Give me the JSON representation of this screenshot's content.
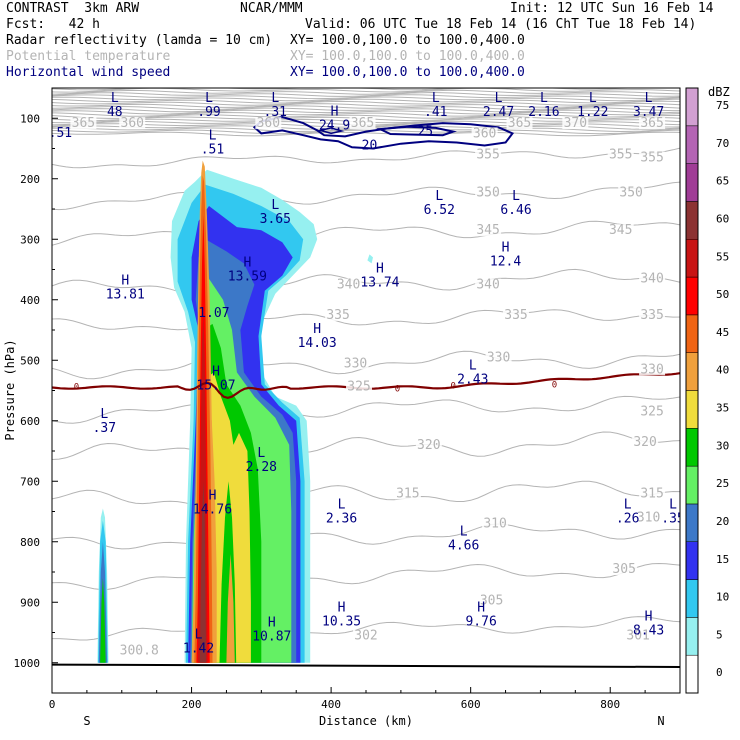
{
  "header": {
    "model": "CONTRAST  3km ARW",
    "org": "NCAR/MMM",
    "init": "Init: 12 UTC Sun 16 Feb 14",
    "fcst": "Fcst:   42 h",
    "valid": "Valid: 06 UTC Tue 18 Feb 14 (16 ChT Tue 18 Feb 14)",
    "fields": [
      {
        "name": "Radar reflectivity (lamda = 10 cm)",
        "xy": "XY= 100.0,100.0 to 100.0,400.0",
        "color": "#000000"
      },
      {
        "name": "Potential temperature",
        "xy": "XY= 100.0,100.0 to 100.0,400.0",
        "color": "#b4b4b4"
      },
      {
        "name": "Horizontal wind speed",
        "xy": "XY= 100.0,100.0 to 100.0,400.0",
        "color": "#000080"
      }
    ]
  },
  "chart_data": {
    "type": "heatmap",
    "title": "",
    "xlabel": "Distance (km)",
    "ylabel": "Pressure (hPa)",
    "xlim": [
      0,
      900
    ],
    "ylim": [
      1050,
      50
    ],
    "x_ticks": [
      "0",
      "200",
      "400",
      "600",
      "800"
    ],
    "y_ticks": [
      "100",
      "200",
      "300",
      "400",
      "500",
      "600",
      "700",
      "800",
      "900",
      "1000"
    ],
    "x_end_labels": {
      "left": "S",
      "right": "N"
    },
    "colorbar": {
      "unit": "dBZ",
      "levels": [
        "0",
        "5",
        "10",
        "15",
        "20",
        "25",
        "30",
        "35",
        "40",
        "45",
        "50",
        "55",
        "60",
        "65",
        "70",
        "75"
      ],
      "colors": [
        "#ffffff",
        "#96f0f0",
        "#32c8f0",
        "#3232f0",
        "#3c78c8",
        "#64f064",
        "#00c800",
        "#f0dc3c",
        "#f0a03c",
        "#f06414",
        "#ff0000",
        "#c81414",
        "#8c3232",
        "#a03c96",
        "#b464b4",
        "#d2a0d2"
      ]
    },
    "theta_labels": [
      {
        "x": 310,
        "p": 113,
        "v": "360"
      },
      {
        "x": 445,
        "p": 113,
        "v": "365"
      },
      {
        "x": 670,
        "p": 113,
        "v": "365"
      },
      {
        "x": 620,
        "p": 130,
        "v": "360"
      },
      {
        "x": 750,
        "p": 113,
        "v": "370"
      },
      {
        "x": 860,
        "p": 113,
        "v": "365"
      },
      {
        "x": 45,
        "p": 113,
        "v": "365"
      },
      {
        "x": 115,
        "p": 113,
        "v": "360"
      },
      {
        "x": 625,
        "p": 165,
        "v": "355"
      },
      {
        "x": 815,
        "p": 165,
        "v": "355"
      },
      {
        "x": 860,
        "p": 170,
        "v": "355"
      },
      {
        "x": 625,
        "p": 228,
        "v": "350"
      },
      {
        "x": 830,
        "p": 228,
        "v": "350"
      },
      {
        "x": 625,
        "p": 290,
        "v": "345"
      },
      {
        "x": 815,
        "p": 290,
        "v": "345"
      },
      {
        "x": 425,
        "p": 380,
        "v": "340"
      },
      {
        "x": 625,
        "p": 380,
        "v": "340"
      },
      {
        "x": 860,
        "p": 370,
        "v": "340"
      },
      {
        "x": 410,
        "p": 430,
        "v": "335"
      },
      {
        "x": 665,
        "p": 430,
        "v": "335"
      },
      {
        "x": 860,
        "p": 430,
        "v": "335"
      },
      {
        "x": 435,
        "p": 510,
        "v": "330"
      },
      {
        "x": 640,
        "p": 500,
        "v": "330"
      },
      {
        "x": 860,
        "p": 520,
        "v": "330"
      },
      {
        "x": 440,
        "p": 548,
        "v": "325"
      },
      {
        "x": 860,
        "p": 590,
        "v": "325"
      },
      {
        "x": 540,
        "p": 645,
        "v": "320"
      },
      {
        "x": 850,
        "p": 640,
        "v": "320"
      },
      {
        "x": 510,
        "p": 725,
        "v": "315"
      },
      {
        "x": 860,
        "p": 725,
        "v": "315"
      },
      {
        "x": 635,
        "p": 775,
        "v": "310"
      },
      {
        "x": 855,
        "p": 765,
        "v": "310"
      },
      {
        "x": 820,
        "p": 850,
        "v": "305"
      },
      {
        "x": 630,
        "p": 902,
        "v": "305"
      },
      {
        "x": 450,
        "p": 960,
        "v": "302"
      },
      {
        "x": 840,
        "p": 960,
        "v": "301"
      },
      {
        "x": 125,
        "p": 985,
        "v": "300.8"
      }
    ],
    "wind_contour_labels": [
      {
        "x": 535,
        "p": 122,
        "v": "25"
      },
      {
        "x": 455,
        "p": 145,
        "v": "20"
      }
    ],
    "zero_contour_labels": [
      {
        "x": 35,
        "p": 543,
        "v": "0"
      },
      {
        "x": 495,
        "p": 547,
        "v": "0"
      },
      {
        "x": 575,
        "p": 542,
        "v": "0"
      },
      {
        "x": 720,
        "p": 540,
        "v": "0"
      }
    ],
    "extrema": [
      {
        "type": "L",
        "x": 90,
        "p": 78,
        "v": "48"
      },
      {
        "type": "L",
        "x": 225,
        "p": 78,
        "v": ".99"
      },
      {
        "type": "L",
        "x": 320,
        "p": 78,
        "v": ".31"
      },
      {
        "type": "L",
        "x": 550,
        "p": 78,
        "v": ".41"
      },
      {
        "type": "L",
        "x": 640,
        "p": 78,
        "v": "2.47"
      },
      {
        "type": "L",
        "x": 705,
        "p": 78,
        "v": "2.16"
      },
      {
        "type": "L",
        "x": 775,
        "p": 78,
        "v": "1.22"
      },
      {
        "type": "L",
        "x": 855,
        "p": 78,
        "v": "3.47"
      },
      {
        "type": "",
        "x": 12,
        "p": 113,
        "v": ".51"
      },
      {
        "type": "H",
        "x": 405,
        "p": 100,
        "v": "24.9"
      },
      {
        "type": "L",
        "x": 230,
        "p": 140,
        "v": ".51"
      },
      {
        "type": "L",
        "x": 320,
        "p": 255,
        "v": "3.65"
      },
      {
        "type": "L",
        "x": 555,
        "p": 240,
        "v": "6.52"
      },
      {
        "type": "L",
        "x": 665,
        "p": 240,
        "v": "6.46"
      },
      {
        "type": "H",
        "x": 650,
        "p": 325,
        "v": "12.4"
      },
      {
        "type": "H",
        "x": 280,
        "p": 350,
        "v": "13.59"
      },
      {
        "type": "H",
        "x": 470,
        "p": 360,
        "v": "13.74"
      },
      {
        "type": "H",
        "x": 105,
        "p": 380,
        "v": "13.81"
      },
      {
        "type": "",
        "x": 232,
        "p": 410,
        "v": "1.07"
      },
      {
        "type": "H",
        "x": 380,
        "p": 460,
        "v": "14.03"
      },
      {
        "type": "L",
        "x": 603,
        "p": 520,
        "v": "2.43"
      },
      {
        "type": "H",
        "x": 235,
        "p": 530,
        "v": "15.07"
      },
      {
        "type": "L",
        "x": 75,
        "p": 600,
        "v": ".37"
      },
      {
        "type": "L",
        "x": 300,
        "p": 665,
        "v": "2.28"
      },
      {
        "type": "H",
        "x": 230,
        "p": 735,
        "v": "14.76"
      },
      {
        "type": "L",
        "x": 415,
        "p": 750,
        "v": "2.36"
      },
      {
        "type": "L",
        "x": 590,
        "p": 795,
        "v": "4.66"
      },
      {
        "type": "L",
        "x": 825,
        "p": 750,
        "v": ".26"
      },
      {
        "type": "L",
        "x": 890,
        "p": 750,
        "v": ".35"
      },
      {
        "type": "H",
        "x": 415,
        "p": 920,
        "v": "10.35"
      },
      {
        "type": "H",
        "x": 615,
        "p": 920,
        "v": "9.76"
      },
      {
        "type": "H",
        "x": 315,
        "p": 945,
        "v": "10.87"
      },
      {
        "type": "H",
        "x": 855,
        "p": 935,
        "v": "8.43"
      },
      {
        "type": "L",
        "x": 210,
        "p": 965,
        "v": "1.42"
      }
    ]
  }
}
